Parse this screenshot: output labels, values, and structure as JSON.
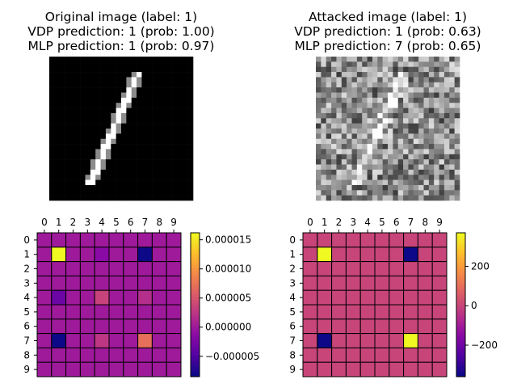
{
  "chart_data": [
    {
      "type": "image",
      "title": [
        "Original image (label: 1)",
        "VDP prediction: 1 (prob: 1.00)",
        "MLP prediction: 1 (prob: 0.97)"
      ],
      "label": 1,
      "vdp_prediction": 1,
      "vdp_prob": 1.0,
      "mlp_prediction": 1,
      "mlp_prob": 0.97,
      "colormap": "gray",
      "description_resolution": [
        28,
        28
      ]
    },
    {
      "type": "image",
      "title": [
        "Attacked image (label: 1)",
        "VDP prediction: 1 (prob: 0.63)",
        "MLP prediction: 7 (prob: 0.65)"
      ],
      "label": 1,
      "vdp_prediction": 1,
      "vdp_prob": 0.63,
      "mlp_prediction": 7,
      "mlp_prob": 0.65,
      "colormap": "gray",
      "description_resolution": [
        28,
        28
      ]
    },
    {
      "type": "heatmap",
      "colormap": "plasma",
      "x_ticks": [
        "0",
        "1",
        "2",
        "3",
        "4",
        "5",
        "6",
        "7",
        "8",
        "9"
      ],
      "y_ticks": [
        "0",
        "1",
        "2",
        "3",
        "4",
        "5",
        "6",
        "7",
        "8",
        "9"
      ],
      "vmin": -8.5e-06,
      "vmax": 1.62e-05,
      "colorbar_ticks": [
        {
          "value": 1.5e-05,
          "label": "0.000015"
        },
        {
          "value": 1e-05,
          "label": "0.000010"
        },
        {
          "value": 5e-06,
          "label": "0.000005"
        },
        {
          "value": 0.0,
          "label": "0.000000"
        },
        {
          "value": -5e-06,
          "label": "−0.000005"
        }
      ],
      "values": [
        [
          0,
          0,
          0,
          0,
          0,
          0,
          0,
          0,
          0,
          0
        ],
        [
          0,
          1.62e-05,
          0,
          0,
          -1.5e-06,
          0,
          0,
          -8.5e-06,
          0,
          0
        ],
        [
          0,
          0,
          0,
          0,
          0,
          0,
          0,
          0,
          0,
          0
        ],
        [
          0,
          0,
          0,
          0,
          0,
          0,
          0,
          0,
          0,
          0
        ],
        [
          0,
          -3.5e-06,
          0,
          0,
          3.5e-06,
          0,
          0,
          1.7e-06,
          0,
          0
        ],
        [
          0,
          0,
          0,
          0,
          0,
          0,
          0,
          0,
          0,
          0
        ],
        [
          0,
          0,
          0,
          0,
          0,
          0,
          0,
          0,
          0,
          0
        ],
        [
          0,
          -8.5e-06,
          0,
          0,
          2.5e-06,
          0,
          0,
          7.2e-06,
          0,
          0
        ],
        [
          0,
          0,
          0,
          0,
          0,
          0,
          0,
          0,
          0,
          0
        ],
        [
          0,
          0,
          0,
          0,
          0,
          0,
          0,
          0,
          0,
          0
        ]
      ]
    },
    {
      "type": "heatmap",
      "colormap": "plasma",
      "x_ticks": [
        "0",
        "1",
        "2",
        "3",
        "4",
        "5",
        "6",
        "7",
        "8",
        "9"
      ],
      "y_ticks": [
        "0",
        "1",
        "2",
        "3",
        "4",
        "5",
        "6",
        "7",
        "8",
        "9"
      ],
      "vmin": -360,
      "vmax": 370,
      "colorbar_ticks": [
        {
          "value": 200,
          "label": "200"
        },
        {
          "value": 0,
          "label": "0"
        },
        {
          "value": -200,
          "label": "−200"
        }
      ],
      "values": [
        [
          0,
          0,
          0,
          0,
          0,
          0,
          0,
          0,
          0,
          0
        ],
        [
          0,
          370,
          0,
          0,
          0,
          0,
          0,
          -360,
          0,
          0
        ],
        [
          0,
          0,
          0,
          0,
          0,
          0,
          0,
          0,
          0,
          0
        ],
        [
          0,
          0,
          0,
          0,
          0,
          0,
          0,
          0,
          0,
          0
        ],
        [
          0,
          0,
          0,
          0,
          0,
          0,
          0,
          0,
          0,
          0
        ],
        [
          0,
          0,
          0,
          0,
          0,
          0,
          0,
          0,
          0,
          0
        ],
        [
          0,
          0,
          0,
          0,
          0,
          0,
          0,
          0,
          0,
          0
        ],
        [
          0,
          -360,
          0,
          0,
          0,
          0,
          0,
          370,
          0,
          0
        ],
        [
          0,
          0,
          0,
          0,
          0,
          0,
          0,
          0,
          0,
          0
        ],
        [
          0,
          0,
          0,
          0,
          0,
          0,
          0,
          0,
          0,
          0
        ]
      ]
    }
  ]
}
